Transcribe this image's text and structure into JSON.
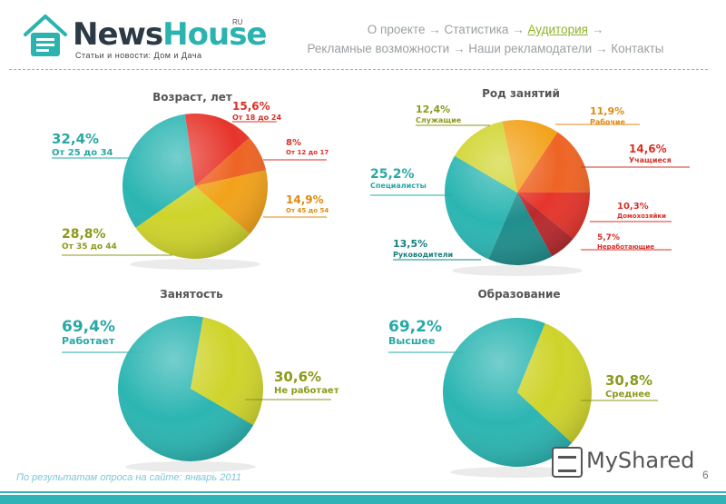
{
  "header": {
    "logo_word_1": "News",
    "logo_word_2": "House",
    "logo_suffix": "RU",
    "logo_tagline": "Статьи и новости: Дом и Дача",
    "nav": [
      {
        "label": "О проекте",
        "active": false
      },
      {
        "label": "Статистика",
        "active": false
      },
      {
        "label": "Аудитория",
        "active": true
      },
      {
        "label": "Рекламные возможности",
        "active": false
      },
      {
        "label": "Наши рекламодатели",
        "active": false
      },
      {
        "label": "Контакты",
        "active": false
      }
    ],
    "nav_separator": "→"
  },
  "footer": {
    "footnote": "По результатам опроса на сайте: январь 2011",
    "page_number": "6",
    "watermark": "MyShared"
  },
  "colors": {
    "teal": "#2bb5b2",
    "yellow": "#cfd42b",
    "orange": "#f2a21a",
    "red": "#e6352b",
    "red_orange": "#ee6424",
    "dark_teal": "#1f8e8c",
    "label_teal": "#2aa8a5",
    "label_olive": "#8a9a1a",
    "label_red": "#d63127"
  },
  "chart_data": [
    {
      "type": "pie",
      "title": "Возраст, лет",
      "slices": [
        {
          "value": "15,6%",
          "label": "От 18 до 24",
          "pct": 15.6,
          "color": "#e6352b"
        },
        {
          "value": "8%",
          "label": "От 12 до 17",
          "pct": 8,
          "color": "#ee6424"
        },
        {
          "value": "14,9%",
          "label": "От 45 до 54",
          "pct": 14.9,
          "color": "#f2a21a"
        },
        {
          "value": "28,8%",
          "label": "От 35 до 44",
          "pct": 28.8,
          "color": "#cfd42b"
        },
        {
          "value": "32,4%",
          "label": "От 25 до 34",
          "pct": 32.4,
          "color": "#2bb5b2"
        }
      ]
    },
    {
      "type": "pie",
      "title": "Род занятий",
      "slices": [
        {
          "value": "11,9%",
          "label": "Рабочие",
          "pct": 11.9,
          "color": "#f2a21a"
        },
        {
          "value": "14,6%",
          "label": "Учащиеся",
          "pct": 14.6,
          "color": "#ee6424"
        },
        {
          "value": "10,3%",
          "label": "Домохозяйки",
          "pct": 10.3,
          "color": "#e6352b"
        },
        {
          "value": "5,7%",
          "label": "Неработающие",
          "pct": 5.7,
          "color": "#b82a2e"
        },
        {
          "value": "13,5%",
          "label": "Руководители",
          "pct": 13.5,
          "color": "#1f8e8c"
        },
        {
          "value": "25,2%",
          "label": "Специалисты",
          "pct": 25.2,
          "color": "#2bb5b2"
        },
        {
          "value": "12,4%",
          "label": "Служащие",
          "pct": 12.4,
          "color": "#cfd42b"
        }
      ]
    },
    {
      "type": "pie",
      "title": "Занятость",
      "slices": [
        {
          "value": "30,6%",
          "label": "Не работает",
          "pct": 30.6,
          "color": "#cfd42b"
        },
        {
          "value": "69,4%",
          "label": "Работает",
          "pct": 69.4,
          "color": "#2bb5b2"
        }
      ]
    },
    {
      "type": "pie",
      "title": "Образование",
      "slices": [
        {
          "value": "30,8%",
          "label": "Среднее",
          "pct": 30.8,
          "color": "#cfd42b"
        },
        {
          "value": "69,2%",
          "label": "Высшее",
          "pct": 69.2,
          "color": "#2bb5b2"
        }
      ]
    }
  ]
}
